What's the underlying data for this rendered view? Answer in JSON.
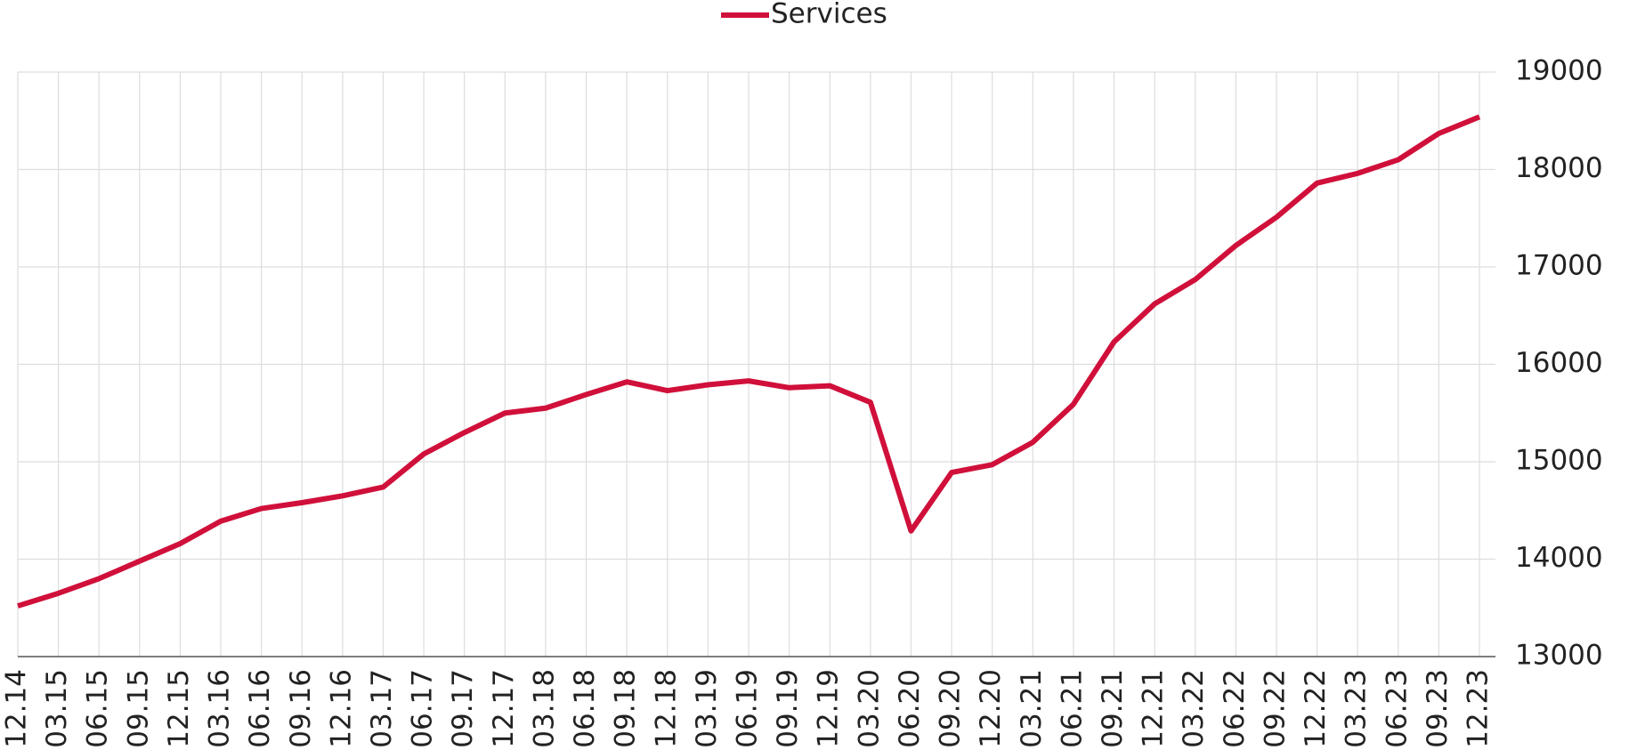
{
  "chart_data": {
    "type": "line",
    "categories": [
      "12.14",
      "03.15",
      "06.15",
      "09.15",
      "12.15",
      "03.16",
      "06.16",
      "09.16",
      "12.16",
      "03.17",
      "06.17",
      "09.17",
      "12.17",
      "03.18",
      "06.18",
      "09.18",
      "12.18",
      "03.19",
      "06.19",
      "09.19",
      "12.19",
      "03.20",
      "06.20",
      "09.20",
      "12.20",
      "03.21",
      "06.21",
      "09.21",
      "12.21",
      "03.22",
      "06.22",
      "09.22",
      "12.22",
      "03.23",
      "06.23",
      "09.23",
      "12.23"
    ],
    "series": [
      {
        "name": "Services",
        "color": "#d0103a",
        "values": [
          13520,
          13650,
          13800,
          13980,
          14160,
          14390,
          14520,
          14580,
          14650,
          14740,
          15080,
          15300,
          15500,
          15550,
          15690,
          15820,
          15730,
          15790,
          15830,
          15760,
          15780,
          15610,
          14290,
          14890,
          14970,
          15200,
          15590,
          16230,
          16620,
          16870,
          17220,
          17510,
          17860,
          17960,
          18100,
          18370,
          18540
        ]
      }
    ],
    "ylim": [
      13000,
      19000
    ],
    "yticks": [
      13000,
      14000,
      15000,
      16000,
      17000,
      18000,
      19000
    ],
    "grid": true,
    "legend": "top"
  }
}
